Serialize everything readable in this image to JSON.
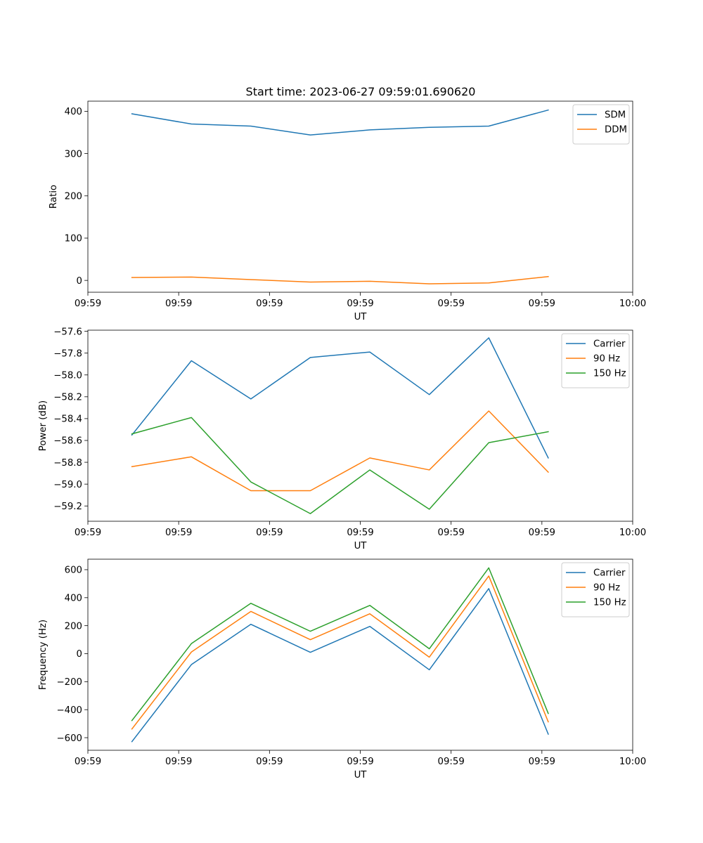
{
  "figure": {
    "title": "Start time: 2023-06-27 09:59:01.690620"
  },
  "colors": {
    "blue": "#1f77b4",
    "orange": "#ff7f0e",
    "green": "#2ca02c"
  },
  "chart_data": [
    {
      "id": "ratio",
      "type": "line",
      "xlabel": "UT",
      "ylabel": "Ratio",
      "xlim": [
        0,
        12
      ],
      "x_ticks": [
        0,
        2,
        4,
        6,
        8,
        10,
        12
      ],
      "x_tick_labels": [
        "09:59",
        "09:59",
        "09:59",
        "09:59",
        "09:59",
        "09:59",
        "10:00"
      ],
      "ylim": [
        -28,
        424
      ],
      "y_ticks": [
        0,
        100,
        200,
        300,
        400
      ],
      "y_tick_labels": [
        "0",
        "100",
        "200",
        "300",
        "400"
      ],
      "legend_position": "top-right",
      "x": [
        0.97,
        2.28,
        3.59,
        4.9,
        6.21,
        7.52,
        8.83,
        10.14
      ],
      "series": [
        {
          "name": "SDM",
          "color": "#1f77b4",
          "values": [
            394,
            370,
            365,
            344,
            356,
            362,
            365,
            403
          ]
        },
        {
          "name": "DDM",
          "color": "#ff7f0e",
          "values": [
            7,
            8,
            2,
            -4,
            -2,
            -8,
            -6,
            9
          ]
        }
      ]
    },
    {
      "id": "power",
      "type": "line",
      "xlabel": "UT",
      "ylabel": "Power (dB)",
      "xlim": [
        0,
        12
      ],
      "x_ticks": [
        0,
        2,
        4,
        6,
        8,
        10,
        12
      ],
      "x_tick_labels": [
        "09:59",
        "09:59",
        "09:59",
        "09:59",
        "09:59",
        "09:59",
        "10:00"
      ],
      "ylim": [
        -59.34,
        -57.59
      ],
      "y_ticks": [
        -57.6,
        -57.8,
        -58.0,
        -58.2,
        -58.4,
        -58.6,
        -58.8,
        -59.0,
        -59.2
      ],
      "y_tick_labels": [
        "−57.6",
        "−57.8",
        "−58.0",
        "−58.2",
        "−58.4",
        "−58.6",
        "−58.8",
        "−59.0",
        "−59.2"
      ],
      "legend_position": "top-right",
      "x": [
        0.97,
        2.28,
        3.59,
        4.9,
        6.21,
        7.52,
        8.83,
        10.14
      ],
      "series": [
        {
          "name": "Carrier",
          "color": "#1f77b4",
          "values": [
            -58.55,
            -57.87,
            -58.22,
            -57.84,
            -57.79,
            -58.18,
            -57.66,
            -58.76
          ]
        },
        {
          "name": "90 Hz",
          "color": "#ff7f0e",
          "values": [
            -58.84,
            -58.75,
            -59.06,
            -59.06,
            -58.76,
            -58.87,
            -58.33,
            -58.89
          ]
        },
        {
          "name": "150 Hz",
          "color": "#2ca02c",
          "values": [
            -58.54,
            -58.39,
            -58.98,
            -59.27,
            -58.87,
            -59.23,
            -58.62,
            -58.52
          ]
        }
      ]
    },
    {
      "id": "frequency",
      "type": "line",
      "xlabel": "UT",
      "ylabel": "Frequency (Hz)",
      "xlim": [
        0,
        12
      ],
      "x_ticks": [
        0,
        2,
        4,
        6,
        8,
        10,
        12
      ],
      "x_tick_labels": [
        "09:59",
        "09:59",
        "09:59",
        "09:59",
        "09:59",
        "09:59",
        "10:00"
      ],
      "ylim": [
        -690,
        675
      ],
      "y_ticks": [
        -600,
        -400,
        -200,
        0,
        200,
        400,
        600
      ],
      "y_tick_labels": [
        "−600",
        "−400",
        "−200",
        "0",
        "200",
        "400",
        "600"
      ],
      "legend_position": "top-right",
      "x": [
        0.97,
        2.28,
        3.59,
        4.9,
        6.21,
        7.52,
        8.83,
        10.14
      ],
      "series": [
        {
          "name": "Carrier",
          "color": "#1f77b4",
          "values": [
            -628,
            -78,
            210,
            10,
            195,
            -115,
            465,
            -575
          ]
        },
        {
          "name": "90 Hz",
          "color": "#ff7f0e",
          "values": [
            -538,
            12,
            302,
            100,
            285,
            -25,
            555,
            -487
          ]
        },
        {
          "name": "150 Hz",
          "color": "#2ca02c",
          "values": [
            -478,
            72,
            360,
            160,
            345,
            35,
            613,
            -427
          ]
        }
      ]
    }
  ]
}
